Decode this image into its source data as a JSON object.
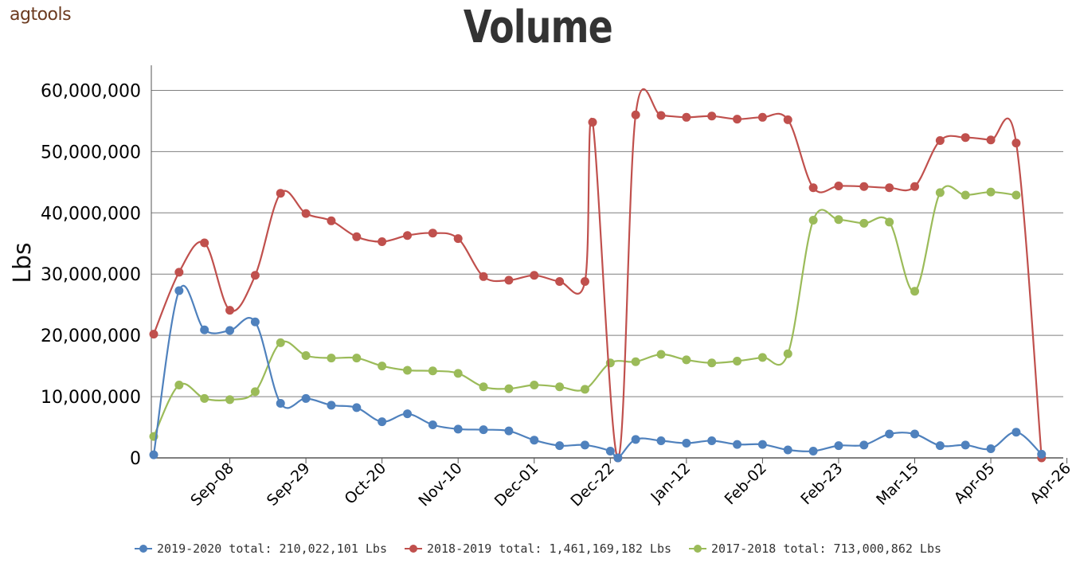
{
  "header": {
    "logo": "agtools"
  },
  "chart_data": {
    "type": "line",
    "title": "Volume",
    "xlabel": "",
    "ylabel": "Lbs",
    "ylim": [
      0,
      65000000
    ],
    "yticks": [
      0,
      10000000,
      20000000,
      30000000,
      40000000,
      50000000,
      60000000
    ],
    "ytick_labels": [
      "0",
      "10,000,000",
      "20,000,000",
      "30,000,000",
      "40,000,000",
      "50,000,000",
      "60,000,000"
    ],
    "x_start_date": "Aug-18",
    "x_step_days": 7,
    "x_tick_labels": [
      "Sep-08",
      "Sep-29",
      "Oct-20",
      "Nov-10",
      "Dec-01",
      "Dec-22",
      "Jan-12",
      "Feb-02",
      "Feb-23",
      "Mar-15",
      "Apr-05",
      "Apr-26"
    ],
    "x_tick_weeks": [
      3,
      6,
      9,
      12,
      15,
      18,
      21,
      24,
      27,
      30,
      33,
      36
    ],
    "grid": true,
    "legend": "bottom-center",
    "series": [
      {
        "name": "2019-2020 total: 210,022,101 Lbs",
        "color": "#4f81bd",
        "points": [
          [
            0,
            500000
          ],
          [
            1,
            27300000
          ],
          [
            2,
            20900000
          ],
          [
            3,
            20800000
          ],
          [
            4,
            22200000
          ],
          [
            5,
            8900000
          ],
          [
            6,
            9700000
          ],
          [
            7,
            8600000
          ],
          [
            8,
            8200000
          ],
          [
            9,
            5900000
          ],
          [
            10,
            7200000
          ],
          [
            11,
            5400000
          ],
          [
            12,
            4700000
          ],
          [
            13,
            4600000
          ],
          [
            14,
            4400000
          ],
          [
            15,
            2900000
          ],
          [
            16,
            2000000
          ],
          [
            17,
            2100000
          ],
          [
            18,
            1100000
          ],
          [
            18.3,
            0
          ],
          [
            19,
            3000000
          ],
          [
            20,
            2800000
          ],
          [
            21,
            2400000
          ],
          [
            22,
            2800000
          ],
          [
            23,
            2200000
          ],
          [
            24,
            2200000
          ],
          [
            25,
            1300000
          ],
          [
            26,
            1100000
          ],
          [
            27,
            2000000
          ],
          [
            28,
            2100000
          ],
          [
            29,
            3900000
          ],
          [
            30,
            3900000
          ],
          [
            31,
            2000000
          ],
          [
            32,
            2100000
          ],
          [
            33,
            1500000
          ],
          [
            34,
            4200000
          ],
          [
            35,
            600000
          ]
        ]
      },
      {
        "name": "2018-2019 total: 1,461,169,182 Lbs",
        "color": "#c0504d",
        "points": [
          [
            0,
            20200000
          ],
          [
            1,
            30300000
          ],
          [
            2,
            35100000
          ],
          [
            3,
            24100000
          ],
          [
            4,
            29800000
          ],
          [
            5,
            43200000
          ],
          [
            6,
            39900000
          ],
          [
            7,
            38700000
          ],
          [
            8,
            36100000
          ],
          [
            9,
            35300000
          ],
          [
            10,
            36300000
          ],
          [
            11,
            36700000
          ],
          [
            12,
            35800000
          ],
          [
            13,
            29600000
          ],
          [
            14,
            29000000
          ],
          [
            15,
            29800000
          ],
          [
            16,
            28800000
          ],
          [
            17,
            28800000
          ],
          [
            17.3,
            54800000
          ],
          [
            18.3,
            0
          ],
          [
            19,
            56000000
          ],
          [
            20,
            55900000
          ],
          [
            21,
            55600000
          ],
          [
            22,
            55800000
          ],
          [
            23,
            55300000
          ],
          [
            24,
            55600000
          ],
          [
            25,
            55200000
          ],
          [
            26,
            44100000
          ],
          [
            27,
            44400000
          ],
          [
            28,
            44300000
          ],
          [
            29,
            44100000
          ],
          [
            30,
            44300000
          ],
          [
            31,
            51800000
          ],
          [
            32,
            52300000
          ],
          [
            33,
            51900000
          ],
          [
            34,
            51400000
          ],
          [
            35,
            0
          ]
        ]
      },
      {
        "name": "2017-2018 total: 713,000,862 Lbs",
        "color": "#9bbb59",
        "points": [
          [
            0,
            3500000
          ],
          [
            1,
            11900000
          ],
          [
            2,
            9700000
          ],
          [
            3,
            9500000
          ],
          [
            4,
            10800000
          ],
          [
            5,
            18800000
          ],
          [
            6,
            16700000
          ],
          [
            7,
            16300000
          ],
          [
            8,
            16300000
          ],
          [
            9,
            15000000
          ],
          [
            10,
            14300000
          ],
          [
            11,
            14200000
          ],
          [
            12,
            13800000
          ],
          [
            13,
            11600000
          ],
          [
            14,
            11300000
          ],
          [
            15,
            11900000
          ],
          [
            16,
            11600000
          ],
          [
            17,
            11200000
          ],
          [
            18,
            15500000
          ],
          [
            19,
            15700000
          ],
          [
            20,
            16900000
          ],
          [
            21,
            16000000
          ],
          [
            22,
            15500000
          ],
          [
            23,
            15800000
          ],
          [
            24,
            16400000
          ],
          [
            25,
            17000000
          ],
          [
            26,
            38800000
          ],
          [
            27,
            38900000
          ],
          [
            28,
            38300000
          ],
          [
            29,
            38500000
          ],
          [
            30,
            27200000
          ],
          [
            31,
            43300000
          ],
          [
            32,
            42900000
          ],
          [
            33,
            43400000
          ],
          [
            34,
            42900000
          ]
        ]
      }
    ]
  }
}
